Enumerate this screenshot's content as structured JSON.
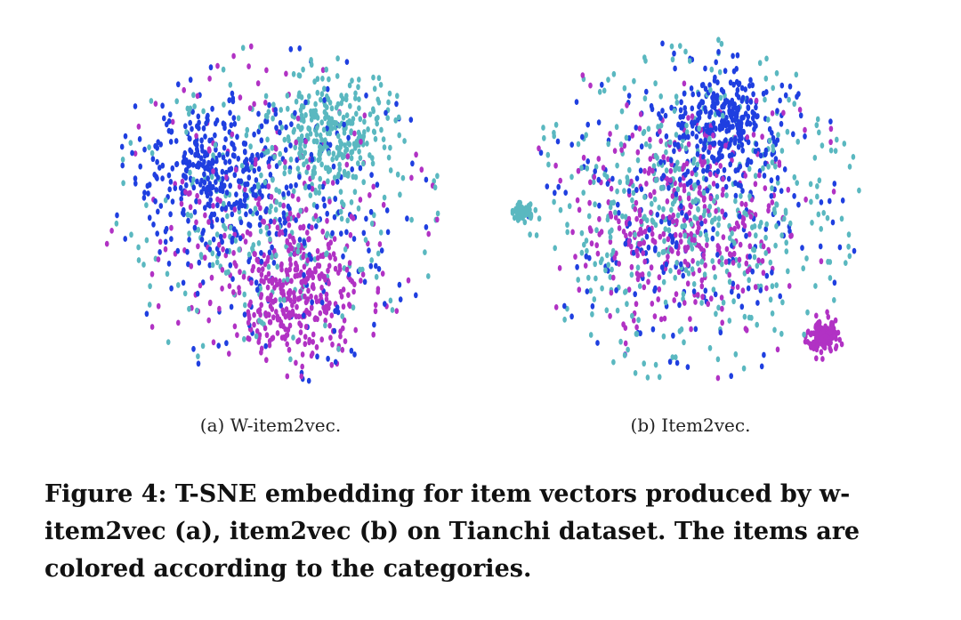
{
  "figure": {
    "caption": "Figure 4: T-SNE embedding for item vectors produced by w-item2vec (a), item2vec (b) on Tianchi dataset. The items are colored according to the categories."
  },
  "colors": {
    "blue": "#1f3fe0",
    "magenta": "#b132c4",
    "teal": "#5ab8c0"
  },
  "chart_data": [
    {
      "type": "scatter",
      "subcaption": "(a) W-item2vec.",
      "title": "",
      "xlabel": "",
      "ylabel": "",
      "grid": false,
      "xlim": [
        -1,
        1
      ],
      "ylim": [
        -1,
        1
      ],
      "series": [
        {
          "color": "blue",
          "clusters": [
            {
              "x": -0.35,
              "y": 0.25,
              "spread": 0.35,
              "weight": 0.55
            },
            {
              "x": 0.05,
              "y": 0.0,
              "spread": 0.7,
              "weight": 0.45
            }
          ]
        },
        {
          "color": "magenta",
          "clusters": [
            {
              "x": 0.15,
              "y": -0.45,
              "spread": 0.35,
              "weight": 0.6
            },
            {
              "x": 0.0,
              "y": 0.0,
              "spread": 0.7,
              "weight": 0.4
            }
          ]
        },
        {
          "color": "teal",
          "clusters": [
            {
              "x": 0.35,
              "y": 0.45,
              "spread": 0.3,
              "weight": 0.5
            },
            {
              "x": 0.0,
              "y": 0.0,
              "spread": 0.75,
              "weight": 0.5
            }
          ]
        }
      ]
    },
    {
      "type": "scatter",
      "subcaption": "(b) Item2vec.",
      "title": "",
      "xlabel": "",
      "ylabel": "",
      "grid": false,
      "xlim": [
        -1,
        1
      ],
      "ylim": [
        -1,
        1
      ],
      "series": [
        {
          "color": "blue",
          "clusters": [
            {
              "x": 0.2,
              "y": 0.5,
              "spread": 0.28,
              "weight": 0.55
            },
            {
              "x": 0.0,
              "y": 0.0,
              "spread": 0.7,
              "weight": 0.45
            }
          ]
        },
        {
          "color": "magenta",
          "clusters": [
            {
              "x": 0.0,
              "y": -0.05,
              "spread": 0.55,
              "weight": 0.75
            },
            {
              "x": 0.75,
              "y": -0.7,
              "spread": 0.08,
              "weight": 0.25
            }
          ]
        },
        {
          "color": "teal",
          "clusters": [
            {
              "x": -0.95,
              "y": 0.0,
              "spread": 0.05,
              "weight": 0.12
            },
            {
              "x": 0.0,
              "y": 0.0,
              "spread": 0.75,
              "weight": 0.88
            }
          ]
        }
      ]
    }
  ]
}
